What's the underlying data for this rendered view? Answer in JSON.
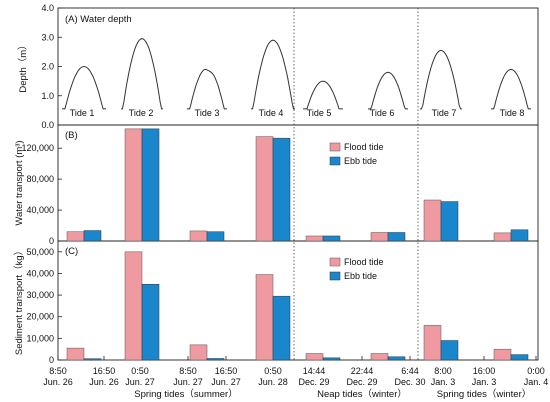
{
  "colors": {
    "flood": "#ee9aa0",
    "ebb": "#1a86cc"
  },
  "chart_data": [
    {
      "type": "line",
      "panel_label": "(A) Water depth",
      "ylabel": "Depth（m）",
      "ylim": [
        0,
        4.0
      ],
      "yticks": [
        "0.0",
        "1.0",
        "2.0",
        "3.0",
        "4.0"
      ],
      "tide_labels": [
        "Tide 1",
        "Tide 2",
        "Tide 3",
        "Tide 4",
        "Tide 5",
        "Tide 6",
        "Tide 7",
        "Tide 8"
      ],
      "peaks": [
        2.0,
        2.95,
        1.95,
        2.9,
        1.5,
        1.8,
        2.55,
        1.9
      ]
    },
    {
      "type": "bar",
      "panel_label": "(B)",
      "ylabel": "Water transport (m³)",
      "ylim": [
        0,
        150000
      ],
      "yticks": [
        "0",
        "40,000",
        "80,000",
        "120,000"
      ],
      "categories": [
        "Tide 1",
        "Tide 2",
        "Tide 3",
        "Tide 4",
        "Tide 5",
        "Tide 6",
        "Tide 7",
        "Tide 8"
      ],
      "series": [
        {
          "name": "Flood tide",
          "values": [
            12000,
            145000,
            13000,
            135000,
            6500,
            11000,
            53000,
            10500
          ]
        },
        {
          "name": "Ebb tide",
          "values": [
            13500,
            145000,
            12000,
            133000,
            6500,
            11000,
            51000,
            14500
          ]
        }
      ]
    },
    {
      "type": "bar",
      "panel_label": "(C)",
      "ylabel": "Sediment transport（kg）",
      "ylim": [
        0,
        55000
      ],
      "yticks": [
        "0",
        "10,000",
        "20,000",
        "30,000",
        "40,000",
        "50,000"
      ],
      "categories": [
        "Tide 1",
        "Tide 2",
        "Tide 3",
        "Tide 4",
        "Tide 5",
        "Tide 6",
        "Tide 7",
        "Tide 8"
      ],
      "series": [
        {
          "name": "Flood tide",
          "values": [
            5500,
            50000,
            7000,
            39500,
            3000,
            3000,
            16000,
            5000
          ]
        },
        {
          "name": "Ebb tide",
          "values": [
            600,
            35000,
            700,
            29500,
            1000,
            1500,
            9000,
            2500
          ]
        }
      ]
    }
  ],
  "x_axis": {
    "time_labels": [
      [
        "8:50",
        "Jun. 26"
      ],
      [
        "16:50",
        "Jun. 26"
      ],
      [
        "0:50",
        "Jun. 27"
      ],
      [
        "8:50",
        "Jun. 27"
      ],
      [
        "16:50",
        "Jun. 27"
      ],
      [
        "0:50",
        "Jun. 28"
      ],
      [
        "14:44",
        "Dec. 29"
      ],
      [
        "22:44",
        "Dec. 29"
      ],
      [
        "6:44",
        "Dec. 30"
      ],
      [
        "8:00",
        "Jan. 3"
      ],
      [
        "16:00",
        "Jan. 3"
      ],
      [
        "0:00",
        "Jan. 4"
      ]
    ],
    "period_labels": [
      "Spring tides（summer）",
      "Neap tides（winter）",
      "Spring tides（winter）"
    ]
  }
}
